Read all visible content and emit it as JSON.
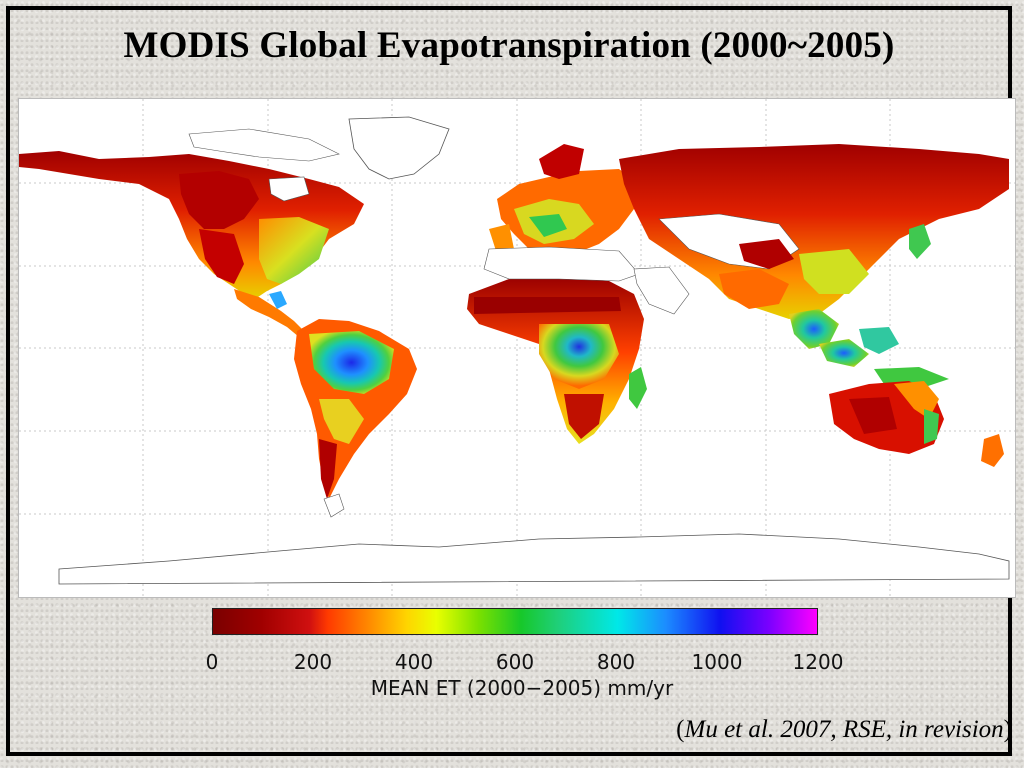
{
  "title": "MODIS Global Evapotranspiration (2000~2005)",
  "colorbar": {
    "ticks": [
      "0",
      "200",
      "400",
      "600",
      "800",
      "1000",
      "1200"
    ],
    "label": "MEAN ET (2000−2005) mm/yr",
    "min": 0,
    "max": 1200
  },
  "citation": {
    "open": "(",
    "text": "Mu et al. 2007, RSE, in revision",
    "close": ")"
  },
  "colors": {
    "low": "#8b0000",
    "mid": "#ff8c00",
    "green": "#22c840",
    "blue": "#1c28e8",
    "high": "#ff00ff"
  }
}
